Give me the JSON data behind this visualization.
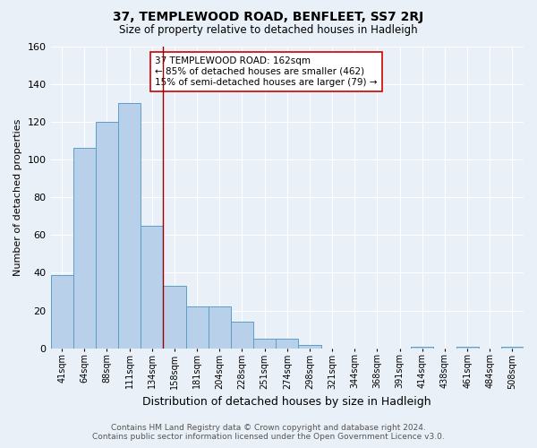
{
  "title": "37, TEMPLEWOOD ROAD, BENFLEET, SS7 2RJ",
  "subtitle": "Size of property relative to detached houses in Hadleigh",
  "xlabel": "Distribution of detached houses by size in Hadleigh",
  "ylabel": "Number of detached properties",
  "footer_line1": "Contains HM Land Registry data © Crown copyright and database right 2024.",
  "footer_line2": "Contains public sector information licensed under the Open Government Licence v3.0.",
  "bins": [
    "41sqm",
    "64sqm",
    "88sqm",
    "111sqm",
    "134sqm",
    "158sqm",
    "181sqm",
    "204sqm",
    "228sqm",
    "251sqm",
    "274sqm",
    "298sqm",
    "321sqm",
    "344sqm",
    "368sqm",
    "391sqm",
    "414sqm",
    "438sqm",
    "461sqm",
    "484sqm",
    "508sqm"
  ],
  "values": [
    39,
    106,
    120,
    130,
    65,
    33,
    22,
    22,
    14,
    5,
    5,
    2,
    0,
    0,
    0,
    0,
    1,
    0,
    1,
    0,
    1
  ],
  "bar_color": "#b8d0ea",
  "bar_edge_color": "#5a9ec9",
  "background_color": "#eaf0f8",
  "grid_color": "#ffffff",
  "vline_color": "#990000",
  "annotation_text": "37 TEMPLEWOOD ROAD: 162sqm\n← 85% of detached houses are smaller (462)\n15% of semi-detached houses are larger (79) →",
  "annotation_box_color": "#ffffff",
  "annotation_box_edge": "#cc0000",
  "ylim": [
    0,
    160
  ],
  "yticks": [
    0,
    20,
    40,
    60,
    80,
    100,
    120,
    140,
    160
  ],
  "vline_x": 4.5
}
